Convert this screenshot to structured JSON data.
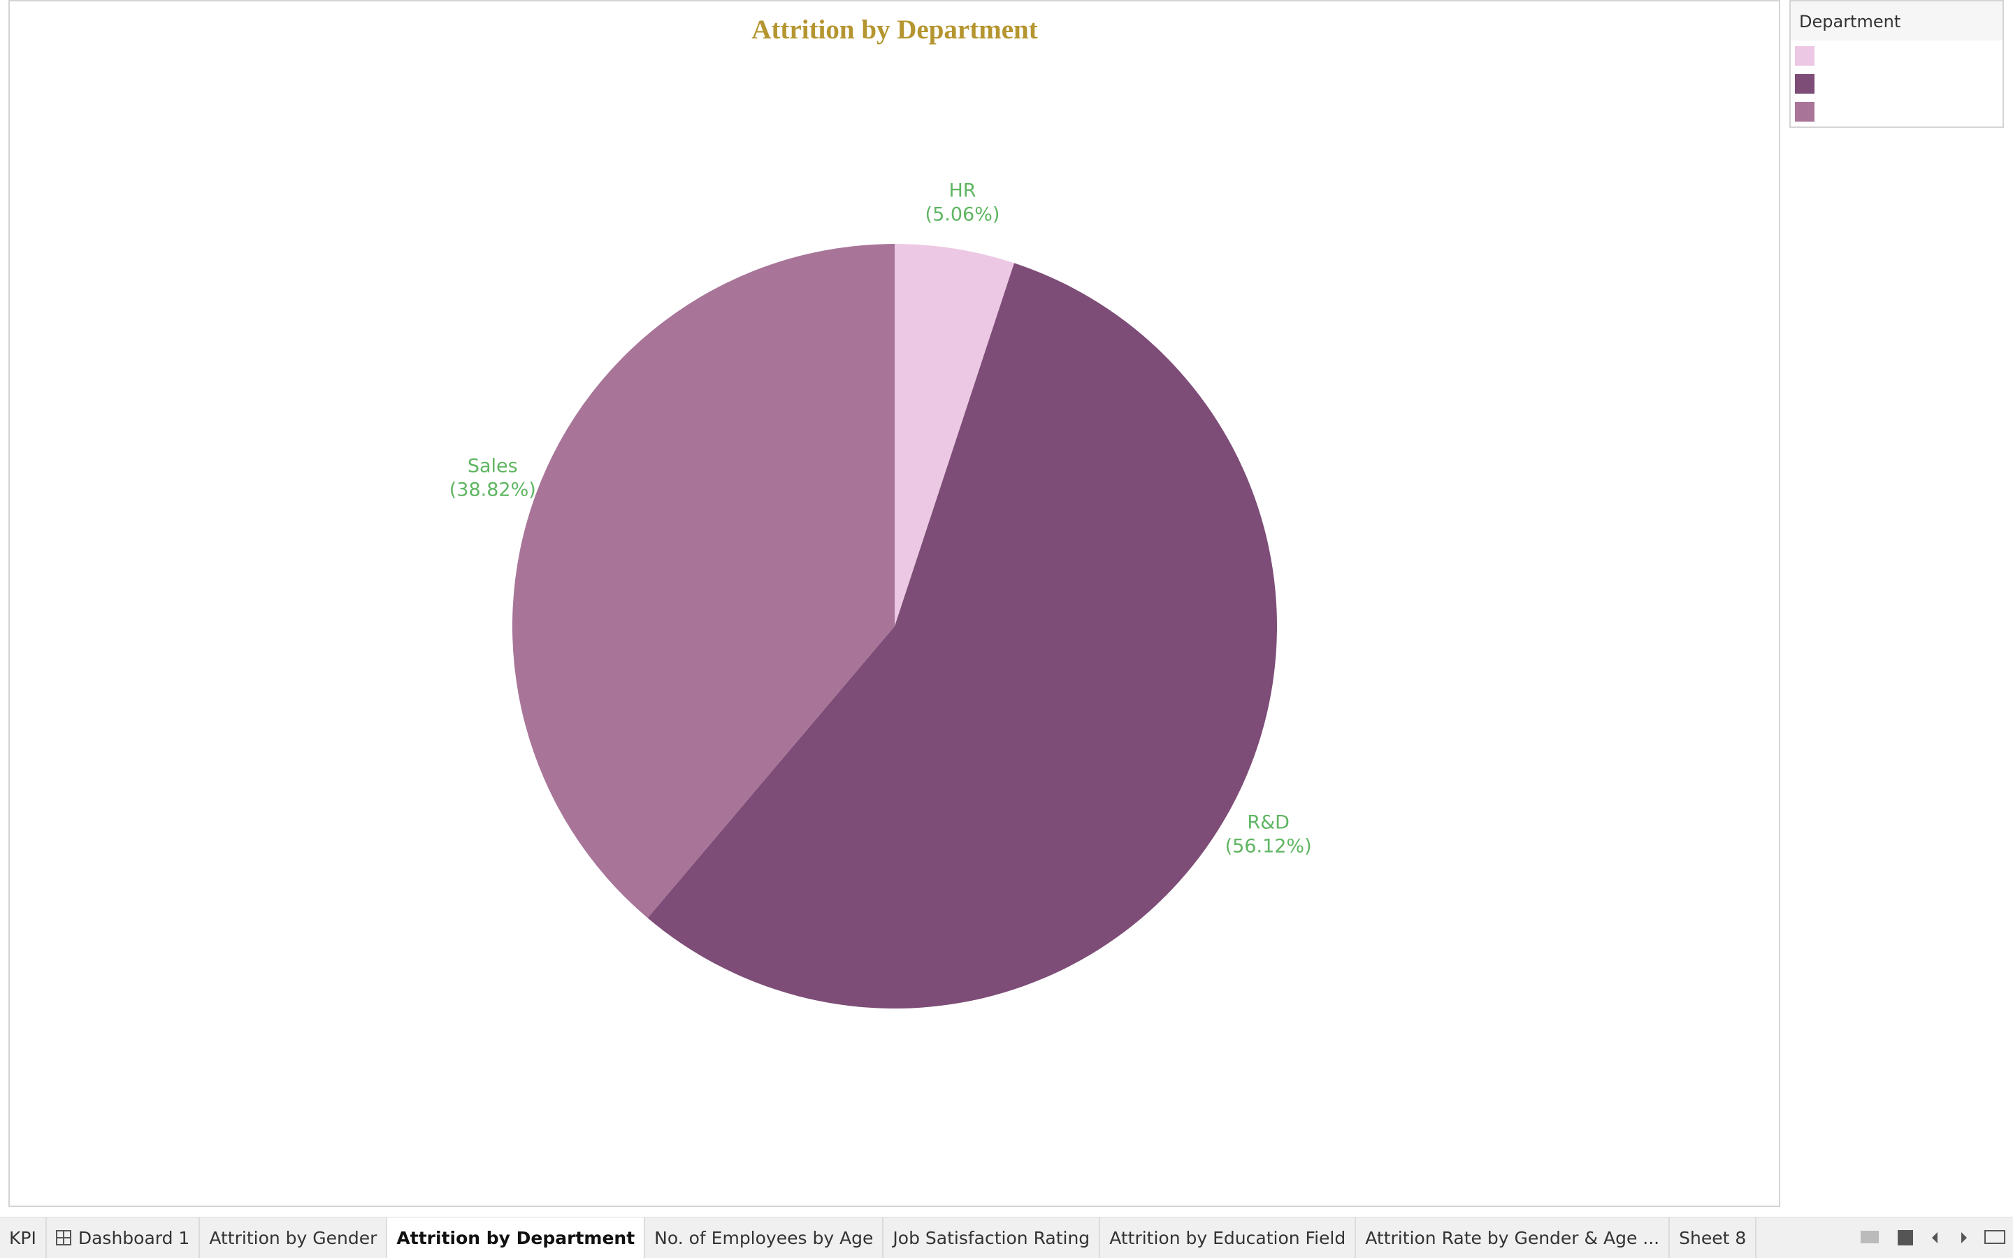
{
  "chart_data": {
    "type": "pie",
    "title": "Attrition by Department",
    "categories": [
      "HR",
      "R&D",
      "Sales"
    ],
    "values": [
      5.06,
      56.12,
      38.82
    ],
    "value_labels": [
      "(5.06%)",
      "(56.12%)",
      "(38.82%)"
    ],
    "colors": [
      "#edc8e4",
      "#7d4d77",
      "#a87599"
    ],
    "label_color": "#5fb562",
    "legend_title": "Department",
    "legend": "top-right"
  },
  "tabs": [
    "KPI",
    "Dashboard 1",
    "Attrition by Gender",
    "Attrition by Department",
    "No. of Employees by Age",
    "Job Satisfaction Rating",
    "Attrition by Education Field",
    "Attrition Rate by Gender & Age ...",
    "Sheet 8"
  ],
  "active_tab": 3
}
